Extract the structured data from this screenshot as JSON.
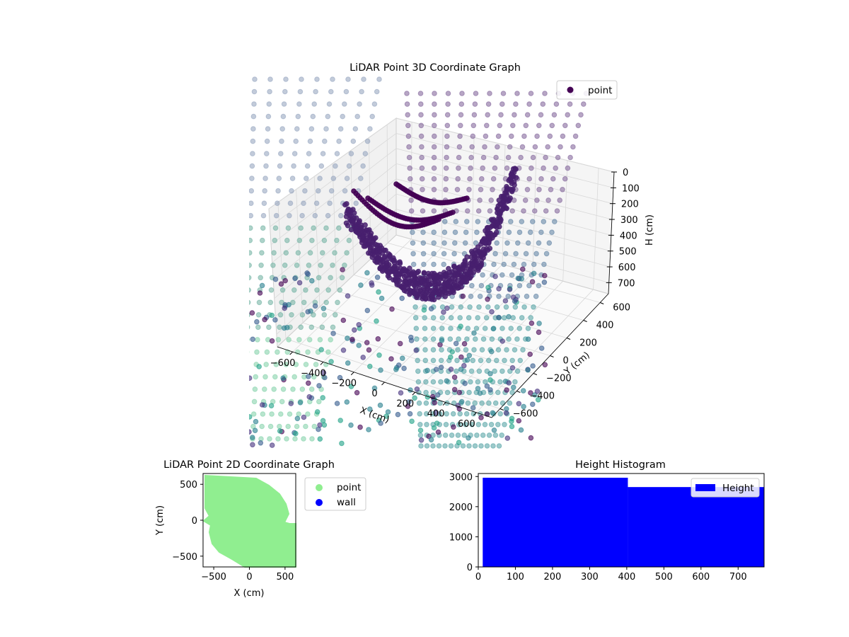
{
  "chart_data": [
    {
      "type": "scatter",
      "projection": "3d",
      "title": "LiDAR Point 3D Coordinate Graph",
      "xlabel": "X (cm)",
      "ylabel": "Y (cm)",
      "zlabel": "H (cm)",
      "x_ticks": [
        -600,
        -400,
        -200,
        0,
        200,
        400,
        600
      ],
      "y_ticks": [
        -600,
        -400,
        -200,
        0,
        200,
        400,
        600
      ],
      "z_ticks": [
        0,
        100,
        200,
        300,
        400,
        500,
        600,
        700
      ],
      "xlim": [
        -700,
        700
      ],
      "ylim": [
        -700,
        700
      ],
      "zlim": [
        770,
        0
      ],
      "z_inverted": true,
      "colormap": "viridis",
      "legend": {
        "placement": "top-right",
        "entries": [
          "point"
        ]
      },
      "series": [
        {
          "name": "point",
          "color": "#440154"
        }
      ],
      "grid": true
    },
    {
      "type": "scatter",
      "title": "LiDAR Point 2D Coordinate Graph",
      "xlabel": "X (cm)",
      "ylabel": "Y (cm)",
      "x_ticks": [
        -500,
        0,
        500
      ],
      "y_ticks": [
        -500,
        0,
        500
      ],
      "xlim": [
        -650,
        650
      ],
      "ylim": [
        -650,
        650
      ],
      "legend": {
        "placement": "outside-right",
        "entries": [
          "point",
          "wall"
        ]
      },
      "series": [
        {
          "name": "point",
          "color": "#90ee90"
        },
        {
          "name": "wall",
          "color": "#0000ff"
        }
      ],
      "grid": false
    },
    {
      "type": "bar",
      "title": "Height Histogram",
      "x_ticks": [
        0,
        100,
        200,
        300,
        400,
        500,
        600,
        700
      ],
      "y_ticks": [
        0,
        1000,
        2000,
        3000
      ],
      "xlim": [
        0,
        770
      ],
      "ylim": [
        0,
        3100
      ],
      "bins": [
        {
          "x0": 12,
          "x1": 403,
          "value": 2960
        },
        {
          "x0": 403,
          "x1": 770,
          "value": 2650
        }
      ],
      "legend": {
        "placement": "top-right",
        "entries": [
          "Height"
        ]
      },
      "series": [
        {
          "name": "Height",
          "color": "#0000ff"
        }
      ],
      "grid": false
    }
  ]
}
